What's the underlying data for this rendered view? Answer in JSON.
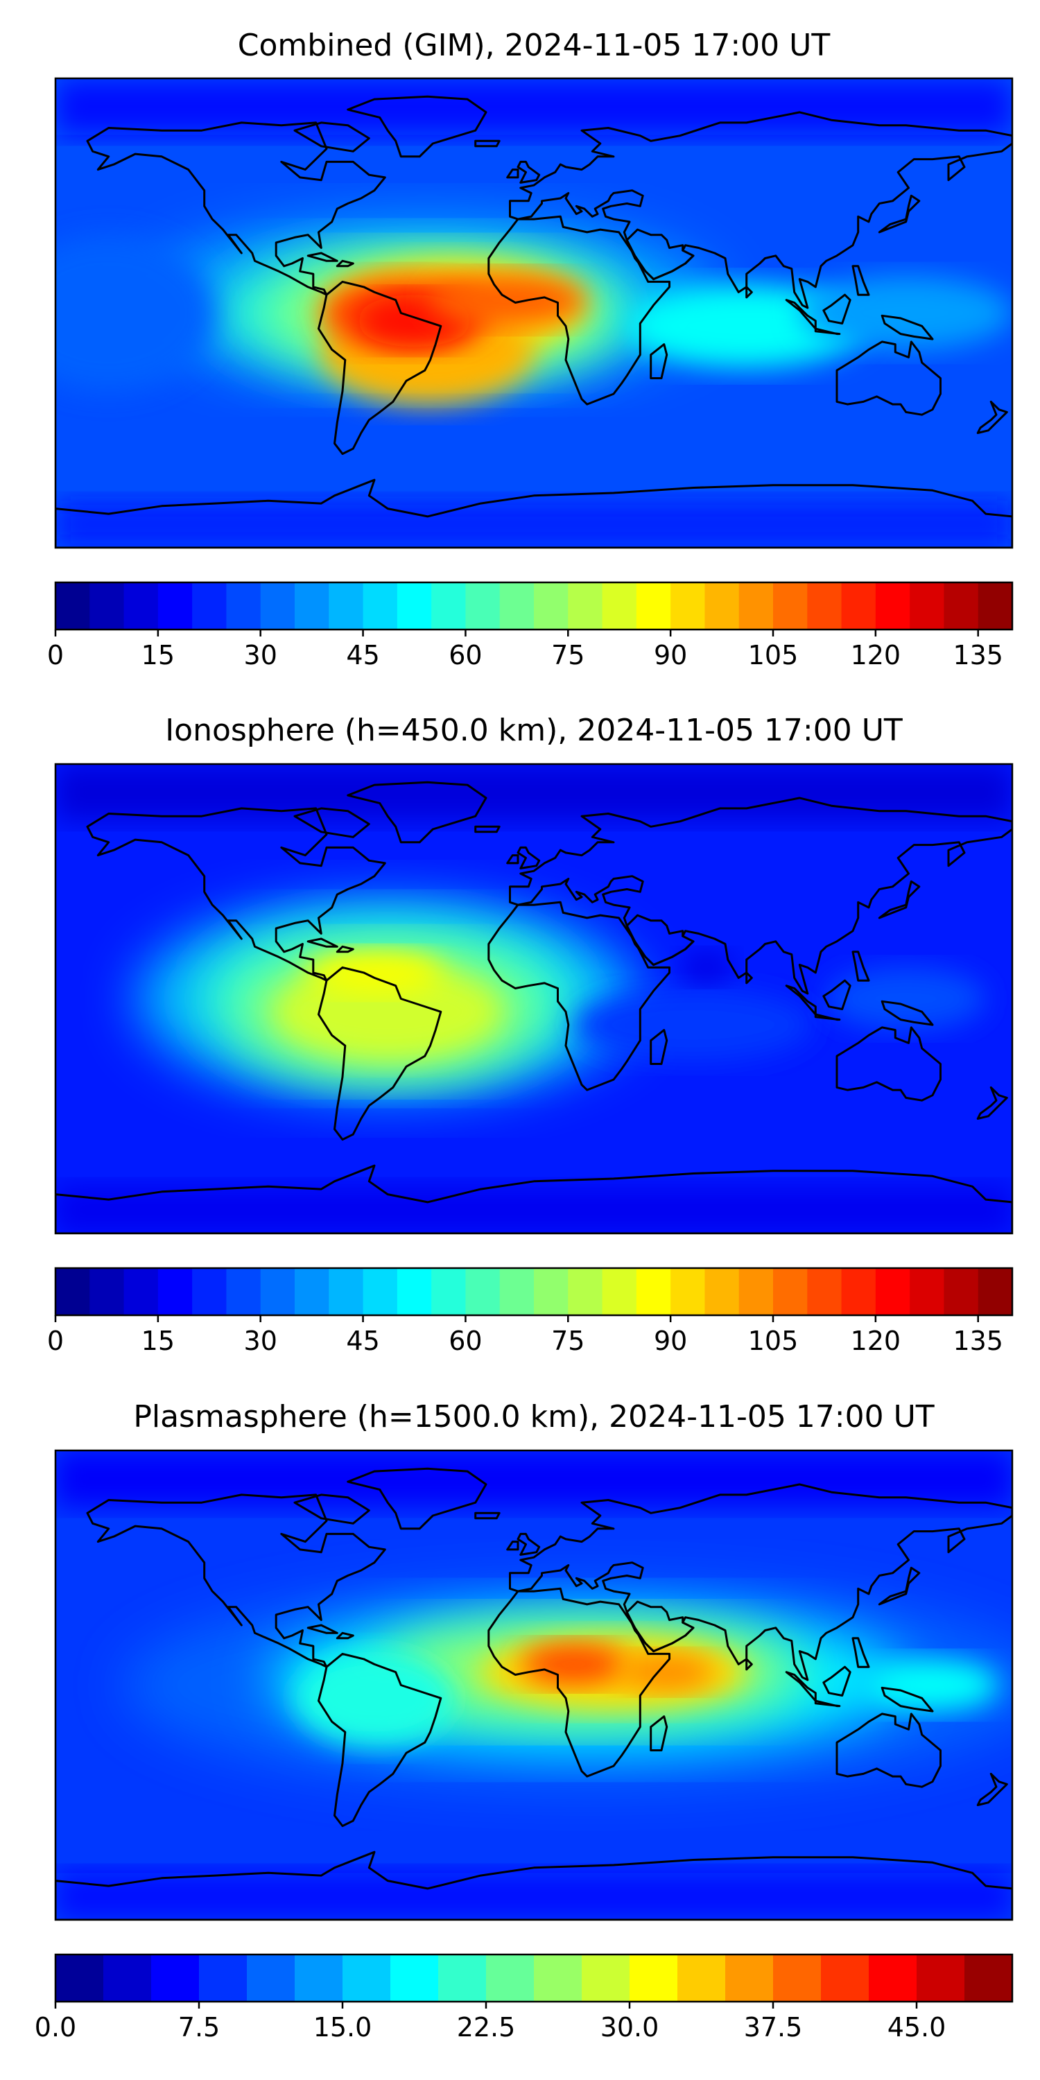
{
  "chart_data": [
    {
      "type": "heatmap",
      "title": "Combined (GIM), 2024-11-05 17:00 UT",
      "map": "world-map",
      "colormap": "jet",
      "colorbar": {
        "levels": [
          0,
          5,
          10,
          15,
          20,
          25,
          30,
          35,
          40,
          45,
          50,
          55,
          60,
          65,
          70,
          75,
          80,
          85,
          90,
          95,
          100,
          105,
          110,
          115,
          120,
          125,
          130,
          135,
          140
        ],
        "ticks": [
          0,
          15,
          30,
          45,
          60,
          75,
          90,
          105,
          120,
          135
        ],
        "tick_labels": [
          "0",
          "15",
          "30",
          "45",
          "60",
          "75",
          "90",
          "105",
          "120",
          "135"
        ],
        "range": [
          0,
          140
        ]
      },
      "features": [
        {
          "label": "peak over northern South America / equatorial Atlantic",
          "lon": -55,
          "lat": -3,
          "value": 110
        },
        {
          "label": "equatorial Atlantic / West Africa",
          "lon": -10,
          "lat": 2,
          "value": 100
        },
        {
          "label": "southern Atlantic anomaly crest",
          "lon": -55,
          "lat": -28,
          "value": 90
        },
        {
          "label": "Indian Ocean",
          "lon": 75,
          "lat": -5,
          "value": 50
        },
        {
          "label": "western Pacific",
          "lon": 150,
          "lat": 0,
          "value": 35
        },
        {
          "label": "polar regions",
          "lon": 0,
          "lat": 75,
          "value": 15
        }
      ]
    },
    {
      "type": "heatmap",
      "title": "Ionosphere  (h=450.0 km), 2024-11-05 17:00 UT",
      "map": "world-map",
      "colormap": "jet",
      "colorbar": {
        "levels": [
          0,
          5,
          10,
          15,
          20,
          25,
          30,
          35,
          40,
          45,
          50,
          55,
          60,
          65,
          70,
          75,
          80,
          85,
          90,
          95,
          100,
          105,
          110,
          115,
          120,
          125,
          130,
          135,
          140
        ],
        "ticks": [
          0,
          15,
          30,
          45,
          60,
          75,
          90,
          105,
          120,
          135
        ],
        "tick_labels": [
          "0",
          "15",
          "30",
          "45",
          "60",
          "75",
          "90",
          "105",
          "120",
          "135"
        ],
        "range": [
          0,
          140
        ]
      },
      "features": [
        {
          "label": "northern South America",
          "lon": -55,
          "lat": -5,
          "value": 82
        },
        {
          "label": "Caribbean crest",
          "lon": -62,
          "lat": 12,
          "value": 80
        },
        {
          "label": "southern Atlantic",
          "lon": -50,
          "lat": -30,
          "value": 70
        },
        {
          "label": "Arabian Sea minimum",
          "lon": 65,
          "lat": 12,
          "value": 20
        },
        {
          "label": "Indian Ocean",
          "lon": 80,
          "lat": -10,
          "value": 25
        },
        {
          "label": "polar regions",
          "lon": 60,
          "lat": 70,
          "value": 8
        }
      ]
    },
    {
      "type": "heatmap",
      "title": "Plasmasphere (h=1500.0 km), 2024-11-05 17:00 UT",
      "map": "world-map",
      "colormap": "jet",
      "colorbar": {
        "levels": [
          0.0,
          2.5,
          5.0,
          7.5,
          10.0,
          12.5,
          15.0,
          17.5,
          20.0,
          22.5,
          25.0,
          27.5,
          30.0,
          32.5,
          35.0,
          37.5,
          40.0,
          42.5,
          45.0,
          47.5,
          50.0
        ],
        "ticks": [
          0.0,
          7.5,
          15.0,
          22.5,
          30.0,
          37.5,
          45.0
        ],
        "tick_labels": [
          "0.0",
          "7.5",
          "15.0",
          "22.5",
          "30.0",
          "37.5",
          "45.0"
        ],
        "range": [
          0,
          50
        ]
      },
      "features": [
        {
          "label": "central Africa peak",
          "lon": 15,
          "lat": 8,
          "value": 40
        },
        {
          "label": "Indian Ocean / East Africa",
          "lon": 50,
          "lat": 5,
          "value": 36
        },
        {
          "label": "Atlantic band",
          "lon": -20,
          "lat": 5,
          "value": 28
        },
        {
          "label": "South America",
          "lon": -60,
          "lat": -5,
          "value": 22
        },
        {
          "label": "western Pacific",
          "lon": 150,
          "lat": 0,
          "value": 20
        },
        {
          "label": "North America",
          "lon": -100,
          "lat": 50,
          "value": 5
        }
      ]
    }
  ]
}
